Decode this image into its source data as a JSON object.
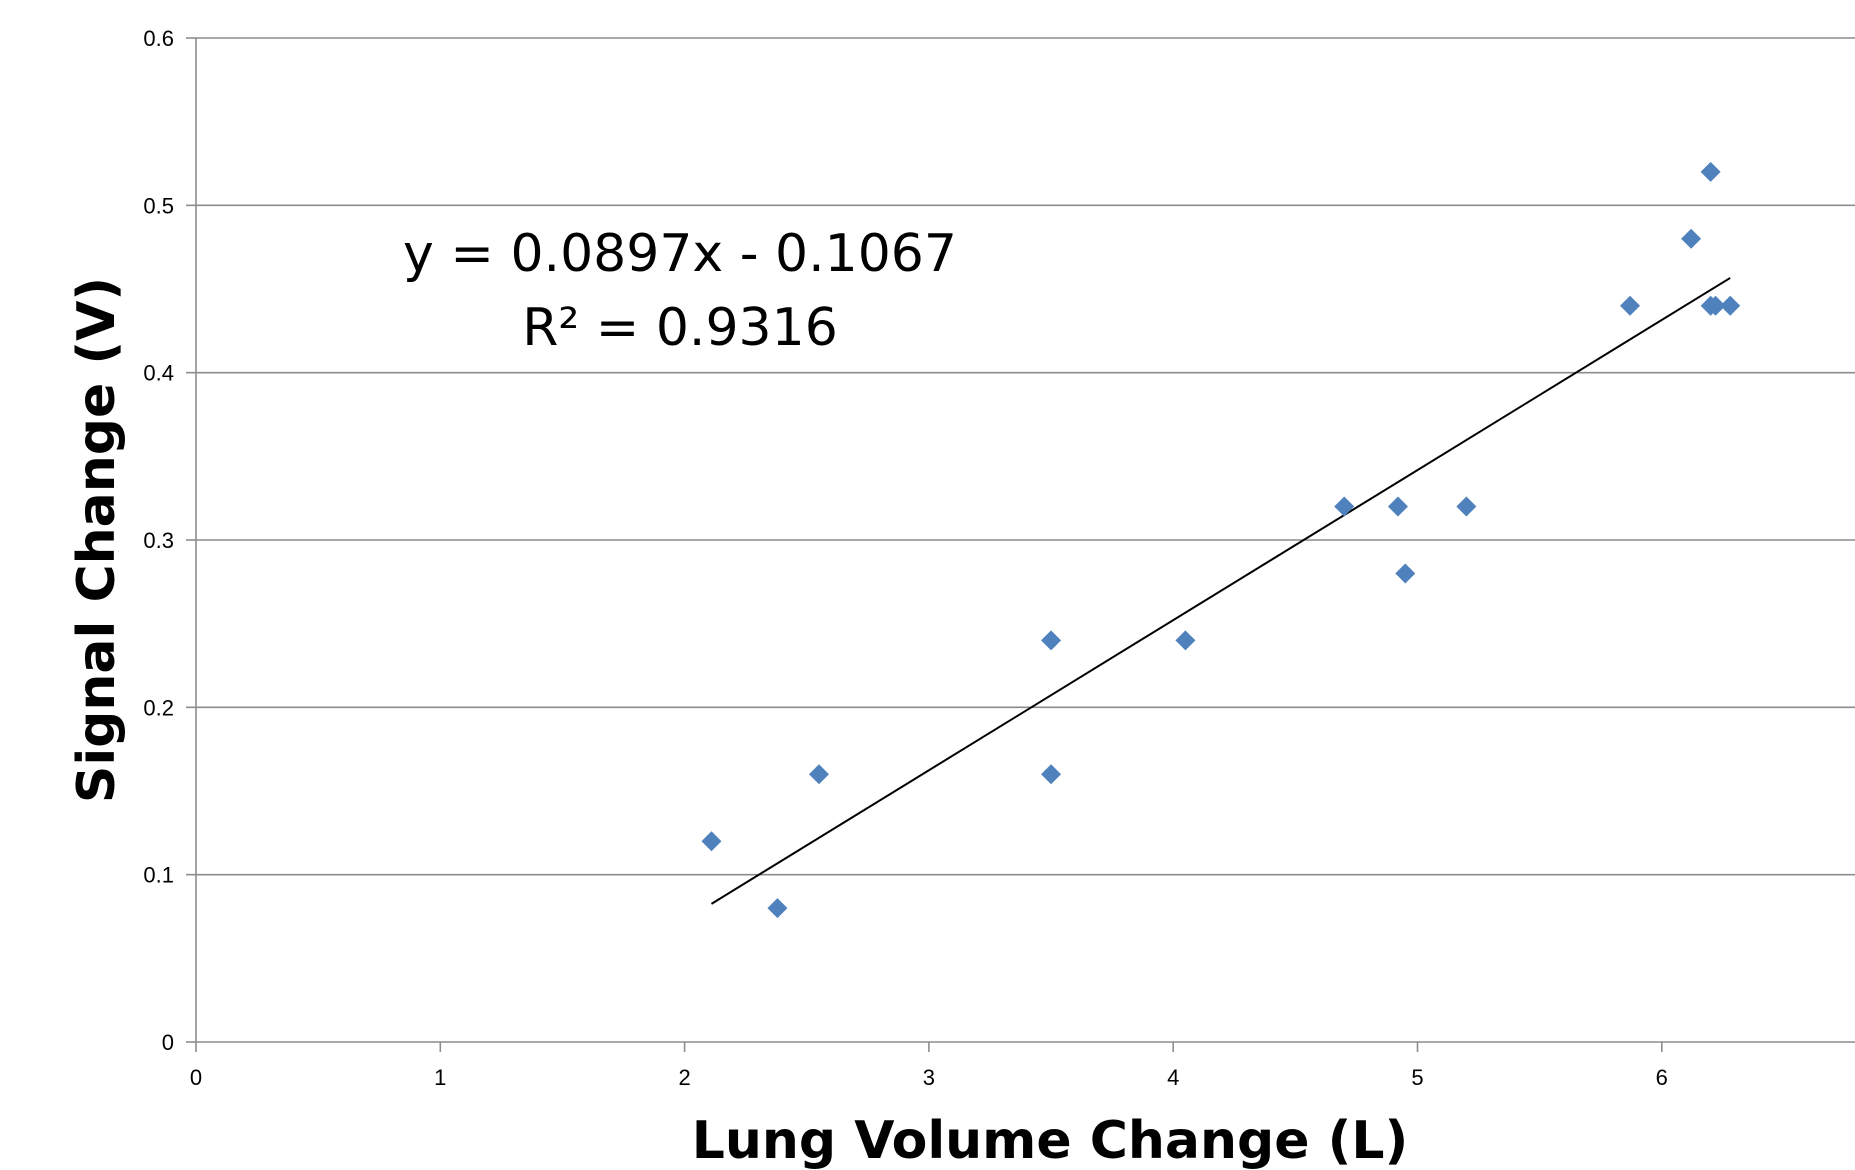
{
  "chart_data": {
    "type": "scatter",
    "title": "",
    "xlabel": "Lung Volume Change (L)",
    "ylabel": "Signal Change (V)",
    "xlim": [
      0,
      7
    ],
    "ylim": [
      0,
      0.6
    ],
    "x_ticks": [
      "0",
      "1",
      "2",
      "3",
      "4",
      "5",
      "6"
    ],
    "y_ticks": [
      "0",
      "0.1",
      "0.2",
      "0.3",
      "0.4",
      "0.5",
      "0.6"
    ],
    "grid": "horizontal",
    "legend": "none",
    "series": [
      {
        "name": "",
        "color": "#4f81bd",
        "marker": "diamond",
        "x": [
          2.11,
          2.38,
          2.55,
          3.5,
          3.5,
          4.05,
          4.7,
          4.92,
          4.95,
          5.2,
          5.87,
          6.12,
          6.2,
          6.2,
          6.22,
          6.28
        ],
        "y": [
          0.12,
          0.08,
          0.16,
          0.24,
          0.16,
          0.24,
          0.32,
          0.32,
          0.28,
          0.32,
          0.44,
          0.48,
          0.52,
          0.44,
          0.44,
          0.44
        ]
      }
    ],
    "trendline": {
      "type": "linear",
      "slope": 0.0897,
      "intercept": -0.1067,
      "x_range": [
        2.11,
        6.28
      ],
      "color": "#000000",
      "equation_label": "y = 0.0897x - 0.1067",
      "r2_label": "R² = 0.9316"
    }
  }
}
